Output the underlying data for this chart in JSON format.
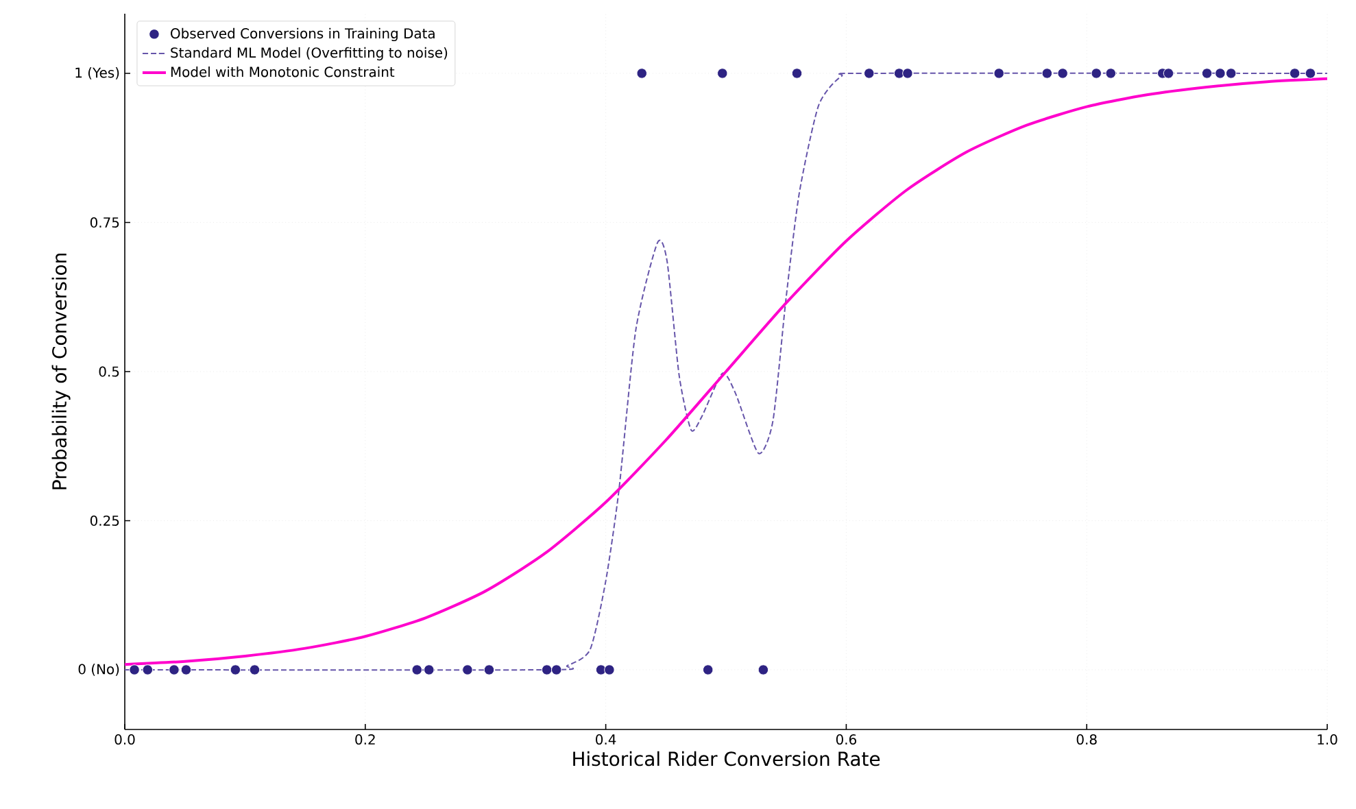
{
  "chart_data": {
    "type": "scatter",
    "xlabel": "Historical Rider Conversion Rate",
    "ylabel": "Probability of Conversion",
    "xlim": [
      0,
      1
    ],
    "ylim": [
      -0.1,
      1.1
    ],
    "xticks": [
      {
        "value": 0,
        "label": "0.0"
      },
      {
        "value": 0.2,
        "label": "0.2"
      },
      {
        "value": 0.4,
        "label": "0.4"
      },
      {
        "value": 0.6,
        "label": "0.6"
      },
      {
        "value": 0.8,
        "label": "0.8"
      },
      {
        "value": 1,
        "label": "1.0"
      }
    ],
    "yticks": [
      {
        "value": 0,
        "label": "0 (No)"
      },
      0.25,
      0.5,
      0.75,
      {
        "value": 1,
        "label": "1 (Yes)"
      }
    ],
    "grid": true,
    "legend": "top left",
    "series": [
      {
        "name": "Observed Conversions in Training Data",
        "marker": "circle",
        "color": "#2e2383",
        "x": [
          0.008,
          0.019,
          0.041,
          0.051,
          0.092,
          0.108,
          0.243,
          0.253,
          0.285,
          0.303,
          0.351,
          0.359,
          0.396,
          0.403,
          0.485,
          0.531,
          0.43,
          0.497,
          0.559,
          0.619,
          0.644,
          0.651,
          0.727,
          0.767,
          0.78,
          0.808,
          0.82,
          0.863,
          0.868,
          0.9,
          0.911,
          0.92,
          0.973,
          0.986
        ],
        "values": [
          0,
          0,
          0,
          0,
          0,
          0,
          0,
          0,
          0,
          0,
          0,
          0,
          0,
          0,
          0,
          0,
          1,
          1,
          1,
          1,
          1,
          1,
          1,
          1,
          1,
          1,
          1,
          1,
          1,
          1,
          1,
          1,
          1,
          1
        ]
      },
      {
        "name": "Standard ML Model (Overfitting to noise)",
        "type": "line",
        "line_style": "dashed",
        "color": "#6655aa",
        "x": [
          0,
          0.35,
          0.368,
          0.387,
          0.4,
          0.411,
          0.425,
          0.443,
          0.451,
          0.461,
          0.471,
          0.48,
          0.497,
          0.508,
          0.527,
          0.539,
          0.55,
          0.561,
          0.577,
          0.596,
          0.62,
          1
        ],
        "values": [
          0,
          0,
          0.007,
          0.034,
          0.149,
          0.302,
          0.57,
          0.716,
          0.685,
          0.494,
          0.402,
          0.425,
          0.497,
          0.463,
          0.363,
          0.417,
          0.624,
          0.8,
          0.946,
          0.995,
          1,
          1
        ]
      },
      {
        "name": "Model with Monotonic Constraint",
        "type": "line",
        "line_style": "solid",
        "color": "#ff00cc",
        "x": [
          0,
          0.05,
          0.1,
          0.15,
          0.2,
          0.25,
          0.3,
          0.35,
          0.4,
          0.45,
          0.5,
          0.55,
          0.6,
          0.65,
          0.7,
          0.75,
          0.8,
          0.85,
          0.9,
          0.95,
          1
        ],
        "values": [
          0.009,
          0.014,
          0.023,
          0.036,
          0.056,
          0.087,
          0.132,
          0.196,
          0.281,
          0.385,
          0.5,
          0.615,
          0.719,
          0.804,
          0.868,
          0.913,
          0.944,
          0.964,
          0.977,
          0.986,
          0.991
        ]
      }
    ]
  }
}
